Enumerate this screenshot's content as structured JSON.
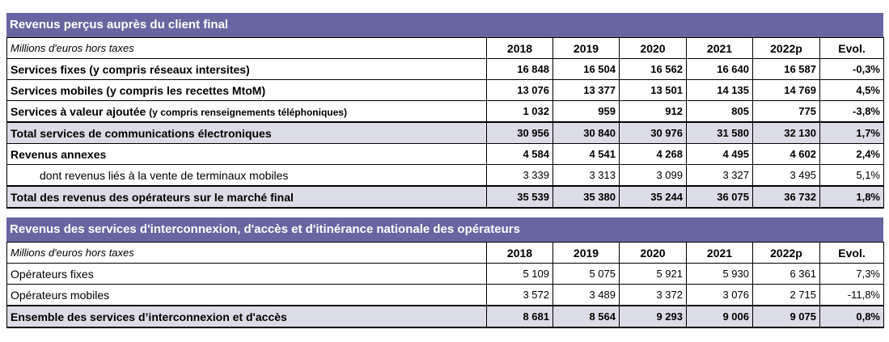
{
  "columns": [
    "2018",
    "2019",
    "2020",
    "2021",
    "2022p",
    "Evol."
  ],
  "table1": {
    "title": "Revenus perçus auprès du client final",
    "unit": "Millions d'euros hors taxes",
    "rows": [
      {
        "label": "Services fixes (y compris réseaux intersites)",
        "sub": "",
        "style": "bold",
        "values": [
          "16 848",
          "16 504",
          "16 562",
          "16 640",
          "16 587",
          "-0,3%"
        ]
      },
      {
        "label": "Services mobiles (y compris les recettes MtoM)",
        "sub": "",
        "style": "bold",
        "values": [
          "13 076",
          "13 377",
          "13 501",
          "14 135",
          "14 769",
          "4,5%"
        ]
      },
      {
        "label": "Services à valeur ajoutée ",
        "sub": "(y compris renseignements téléphoniques)",
        "style": "bold",
        "values": [
          "1 032",
          "959",
          "912",
          "805",
          "775",
          "-3,8%"
        ]
      },
      {
        "label": "Total services de communications électroniques",
        "sub": "",
        "style": "total",
        "values": [
          "30 956",
          "30 840",
          "30 976",
          "31 580",
          "32 130",
          "1,7%"
        ]
      },
      {
        "label": "Revenus annexes",
        "sub": "",
        "style": "bold",
        "values": [
          "4 584",
          "4 541",
          "4 268",
          "4 495",
          "4 602",
          "2,4%"
        ]
      },
      {
        "label": "dont revenus liés à la vente de terminaux mobiles",
        "sub": "",
        "style": "indent",
        "values": [
          "3 339",
          "3 313",
          "3 099",
          "3 327",
          "3 495",
          "5,1%"
        ]
      },
      {
        "label": "Total des revenus des opérateurs sur le marché final",
        "sub": "",
        "style": "total",
        "values": [
          "35 539",
          "35 380",
          "35 244",
          "36 075",
          "36 732",
          "1,8%"
        ]
      }
    ]
  },
  "table2": {
    "title": "Revenus des services d'interconnexion, d'accès et d'itinérance nationale des opérateurs",
    "unit": "Millions d'euros hors taxes",
    "rows": [
      {
        "label": "Opérateurs fixes",
        "sub": "",
        "style": "plain",
        "values": [
          "5 109",
          "5 075",
          "5 921",
          "5 930",
          "6 361",
          "7,3%"
        ]
      },
      {
        "label": "Opérateurs mobiles",
        "sub": "",
        "style": "plain",
        "values": [
          "3 572",
          "3 489",
          "3 372",
          "3 076",
          "2 715",
          "-11,8%"
        ]
      },
      {
        "label": "Ensemble des services d’interconnexion et d'accès",
        "sub": "",
        "style": "total",
        "values": [
          "8 681",
          "8 564",
          "9 293",
          "9 006",
          "9 075",
          "0,8%"
        ]
      }
    ]
  },
  "colors": {
    "title_bar": "#6866a0",
    "total_row": "#dcdce8"
  }
}
